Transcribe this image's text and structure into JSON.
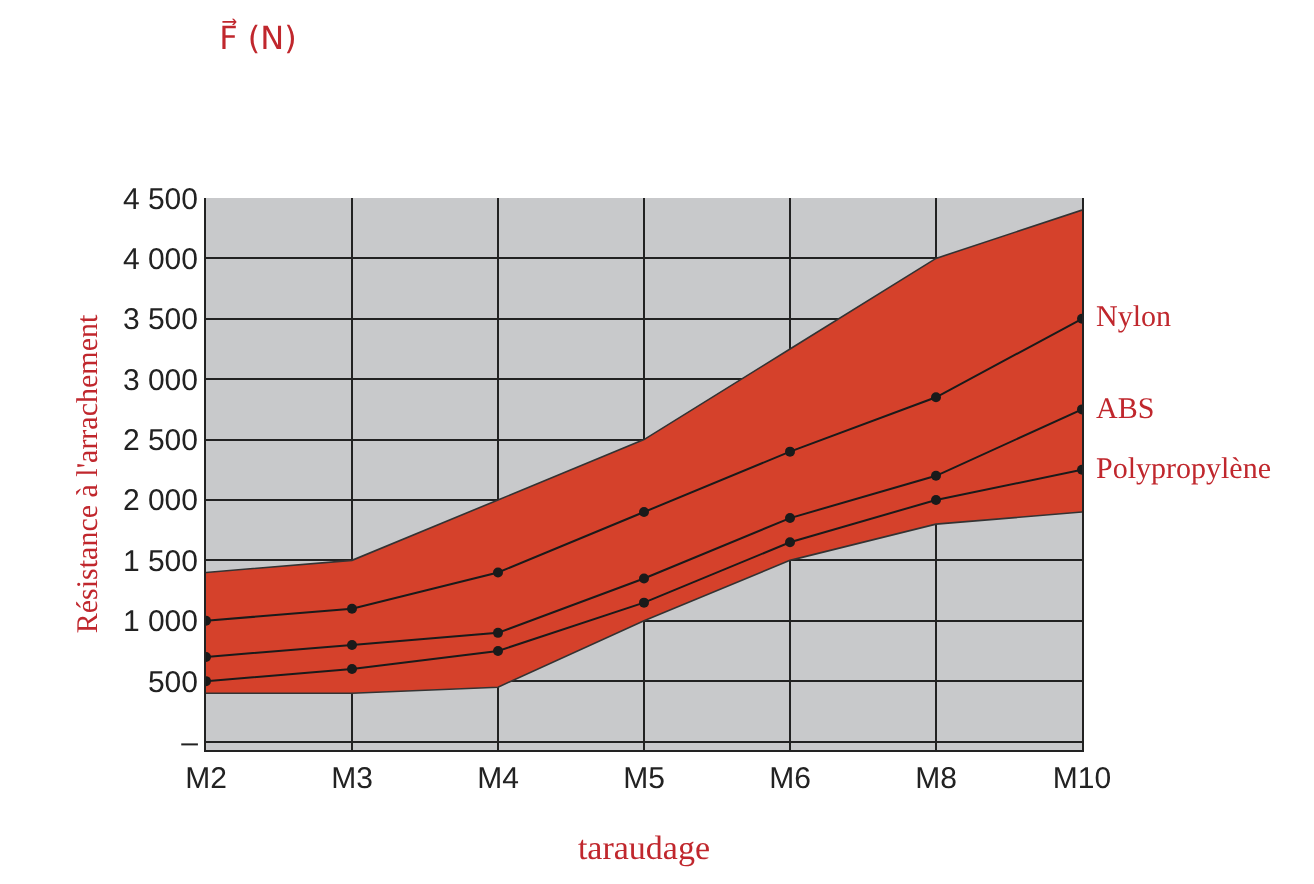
{
  "chart_data": {
    "type": "line",
    "title": "F⃗ (N)",
    "xlabel": "taraudage",
    "ylabel": "Résistance à l'arrachement",
    "categories": [
      "M2",
      "M3",
      "M4",
      "M5",
      "M6",
      "M8",
      "M10"
    ],
    "series": [
      {
        "type": "line",
        "color": "#333333",
        "marker": "none",
        "values": [
          400,
          400,
          450,
          1000,
          1500,
          1800,
          1900
        ]
      },
      {
        "type": "area",
        "color": "#d5412b",
        "marker": "none",
        "values": [
          1400,
          1500,
          2000,
          2500,
          3250,
          4000,
          4400
        ]
      },
      {
        "name": "Nylon",
        "color": "#1a1a1a",
        "values": [
          1000,
          1100,
          1400,
          1900,
          2400,
          2850,
          3500
        ]
      },
      {
        "name": "ABS",
        "color": "#1a1a1a",
        "values": [
          700,
          800,
          900,
          1350,
          1850,
          2200,
          2750
        ]
      },
      {
        "name": "Polypropylène",
        "color": "#1a1a1a",
        "values": [
          500,
          600,
          750,
          1150,
          1650,
          2000,
          2250
        ]
      }
    ],
    "ylim": [
      -70,
      4500
    ],
    "yticks": [
      {
        "value": 0,
        "label": "–"
      },
      500,
      1000,
      1500,
      2000,
      2500,
      3000,
      3500,
      4000,
      4500
    ],
    "grid": true,
    "marker": "circle",
    "line_style": "solid"
  }
}
